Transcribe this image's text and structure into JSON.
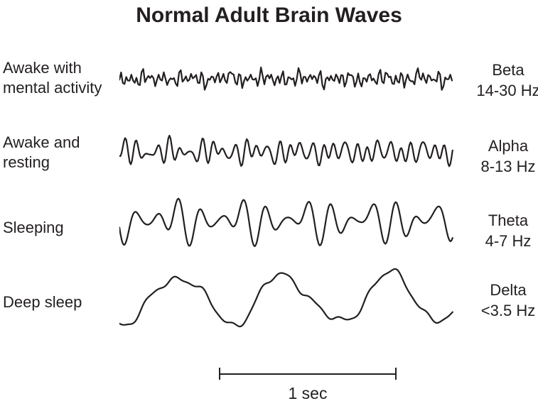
{
  "title": "Normal Adult Brain Waves",
  "colors": {
    "ink": "#231f20",
    "background": "#ffffff"
  },
  "rows": [
    {
      "state_line1": "Awake with",
      "state_line2": "mental activity",
      "band": "Beta",
      "freq": "14-30 Hz",
      "wave": {
        "kind": "beta",
        "seed": 7,
        "step": 2.4,
        "noise": 2.5,
        "components": [
          {
            "wavelength": 7.6,
            "amp": 3.6
          },
          {
            "wavelength": 10.4,
            "amp": 2.7
          },
          {
            "wavelength": 13.9,
            "amp": 2.2
          },
          {
            "wavelength": 24,
            "amp": 1.5
          },
          {
            "wavelength": 55,
            "amp": 1.3
          }
        ]
      }
    },
    {
      "state_line1": "Awake and",
      "state_line2": "resting",
      "band": "Alpha",
      "freq": "8-13 Hz",
      "wave": {
        "kind": "alpha",
        "seed": 3,
        "step": 1.6,
        "noise": 0,
        "components": [
          {
            "wavelength": 15.5,
            "amp": 7
          },
          {
            "wavelength": 22.3,
            "amp": 4
          },
          {
            "wavelength": 12.1,
            "amp": 3
          },
          {
            "wavelength": 60,
            "amp": 2.2
          }
        ]
      }
    },
    {
      "state_line1": "Sleeping",
      "state_line2": "",
      "band": "Theta",
      "freq": "4-7 Hz",
      "wave": {
        "kind": "theta",
        "seed": 11,
        "step": 1.6,
        "noise": 0,
        "components": [
          {
            "wavelength": 30.5,
            "amp": 15
          },
          {
            "wavelength": 45.2,
            "amp": 8
          },
          {
            "wavelength": 23.3,
            "amp": 5
          },
          {
            "wavelength": 95,
            "amp": 4
          }
        ]
      }
    },
    {
      "state_line1": "Deep sleep",
      "state_line2": "",
      "band": "Delta",
      "freq": "<3.5 Hz",
      "wave": {
        "kind": "delta",
        "seed": 5,
        "step": 1.6,
        "noise": 0,
        "components": [
          {
            "wavelength": 149,
            "amp": 30
          },
          {
            "wavelength": 85,
            "amp": 6
          },
          {
            "wavelength": 39,
            "amp": 3.5
          },
          {
            "wavelength": 21,
            "amp": 1.2
          }
        ]
      }
    }
  ],
  "scale_bar": {
    "label": "1 sec"
  }
}
